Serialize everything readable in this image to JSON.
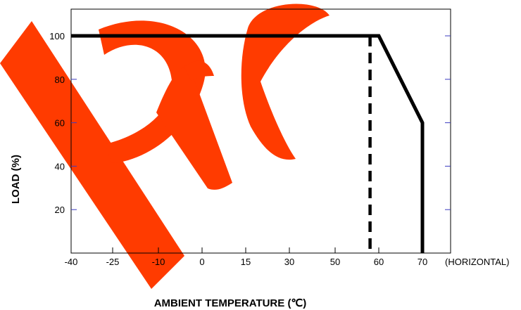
{
  "chart_data": {
    "type": "line",
    "xlabel": "AMBIENT TEMPERATURE (℃)",
    "ylabel": "LOAD (%)",
    "x_axis_suffix": "(HORIZONTAL)",
    "xlim": [
      -40,
      85
    ],
    "ylim": [
      0,
      115
    ],
    "x_ticks": [
      -40,
      -25,
      -10,
      0,
      15,
      30,
      50,
      60,
      70
    ],
    "y_ticks": [
      20,
      40,
      60,
      80,
      100
    ],
    "series": [
      {
        "style": "solid",
        "x": [
          -40,
          60,
          70,
          70
        ],
        "y": [
          100,
          100,
          60,
          0
        ]
      },
      {
        "style": "dashed",
        "x": [
          58,
          58
        ],
        "y": [
          100,
          0
        ]
      }
    ],
    "grid": false,
    "watermark": "pre",
    "colors": {
      "line": "#000000",
      "watermark": "#ff3b00",
      "tick_marks": "#3b3bbf"
    }
  }
}
